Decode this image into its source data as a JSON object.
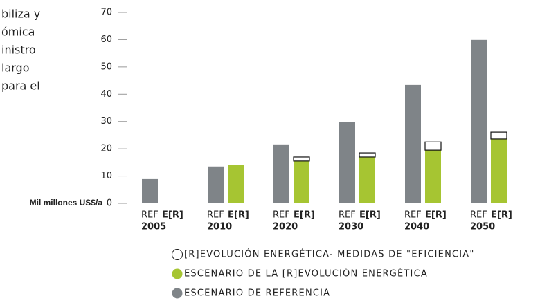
{
  "side_text": [
    "biliza y",
    "ómica",
    "inistro",
    "largo",
    "para el"
  ],
  "chart_data": {
    "type": "stacked-grouped-bar",
    "ylabel": "Mil millones US$/a",
    "categories": [
      "2005",
      "2010",
      "2020",
      "2030",
      "2040",
      "2050"
    ],
    "bar_labels": [
      "REF",
      "E[R]"
    ],
    "series": [
      {
        "name": "ESCENARIO DE REFERENCIA",
        "color": "#7f8488",
        "group": 0,
        "values": [
          8.9,
          13.5,
          21.6,
          29.7,
          43.4,
          59.9
        ]
      },
      {
        "name": "ESCENARIO DE LA [R]EVOLUCIÓN ENERGÉTICA",
        "color": "#a6c532",
        "group": 1,
        "values": [
          null,
          14,
          15.5,
          17,
          19.5,
          23.6
        ]
      },
      {
        "name": "[R]EVOLUCIÓN ENERGÉTICA- MEDIDAS DE \"EFICIENCIA\"",
        "color": "#ffffff",
        "group": 1,
        "values": [
          null,
          null,
          1.5,
          1.5,
          3,
          2.5
        ]
      }
    ],
    "ylim": [
      0,
      70
    ],
    "yticks": [
      0,
      10,
      20,
      30,
      40,
      50,
      60,
      70
    ]
  }
}
